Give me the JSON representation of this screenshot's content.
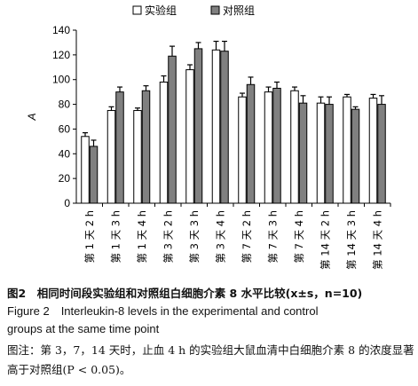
{
  "chart_data": {
    "type": "bar",
    "ylabel": "A",
    "ylim": [
      0,
      140
    ],
    "yticks": [
      0,
      20,
      40,
      60,
      80,
      100,
      120,
      140
    ],
    "legend_position": "top",
    "categories": [
      "第 1 天 2 h",
      "第 1 天 3 h",
      "第 1 天 4 h",
      "第 3 天 2 h",
      "第 3 天 3 h",
      "第 3 天 4 h",
      "第 7 天 2 h",
      "第 7 天 3 h",
      "第 7 天 4 h",
      "第 14 天 2 h",
      "第 14 天 3 h",
      "第 14 天 4 h"
    ],
    "series": [
      {
        "name": "实验组",
        "color": "#ffffff",
        "values": [
          54,
          75,
          75,
          98,
          108,
          124,
          86,
          90,
          91,
          81,
          86,
          85
        ],
        "errors": [
          3,
          3,
          2,
          5,
          4,
          7,
          3,
          4,
          3,
          5,
          2,
          3
        ]
      },
      {
        "name": "对照组",
        "color": "#808080",
        "values": [
          46,
          90,
          91,
          119,
          125,
          123,
          96,
          93,
          81,
          80,
          76,
          80
        ],
        "errors": [
          5,
          4,
          4,
          8,
          5,
          8,
          6,
          5,
          6,
          6,
          2,
          7
        ]
      }
    ]
  },
  "captions": {
    "zh_title": "图2　相同时间段实验组和对照组白细胞介素 8 水平比较(x±s，n=10)",
    "en_title_line1": "Figure 2　Interleukin-8 levels in the experimental and control",
    "en_title_line2": "groups at the same time point",
    "note": "图注：第 3，7，14 天时，止血 4 h 的实验组大鼠血清中白细胞介素 8 的浓度显著高于对照组(P < 0.05)。"
  }
}
